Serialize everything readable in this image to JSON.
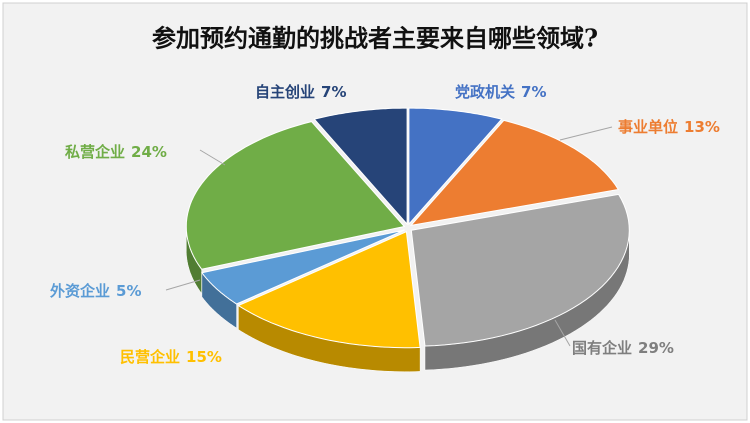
{
  "chart_data": {
    "type": "pie3d",
    "title": "参加预约通勤的挑战者主要来自哪些领域?",
    "categories": [
      "党政机关",
      "事业单位",
      "国有企业",
      "民营企业",
      "外资企业",
      "私营企业",
      "自主创业"
    ],
    "values": [
      7,
      13,
      29,
      15,
      5,
      24,
      7
    ],
    "value_labels": [
      "7%",
      "13%",
      "29%",
      "15%",
      "5%",
      "24%",
      "7%"
    ],
    "colors": [
      "#4472c4",
      "#ed7d31",
      "#a5a5a5",
      "#ffc000",
      "#5b9bd5",
      "#70ad47",
      "#264478"
    ]
  }
}
